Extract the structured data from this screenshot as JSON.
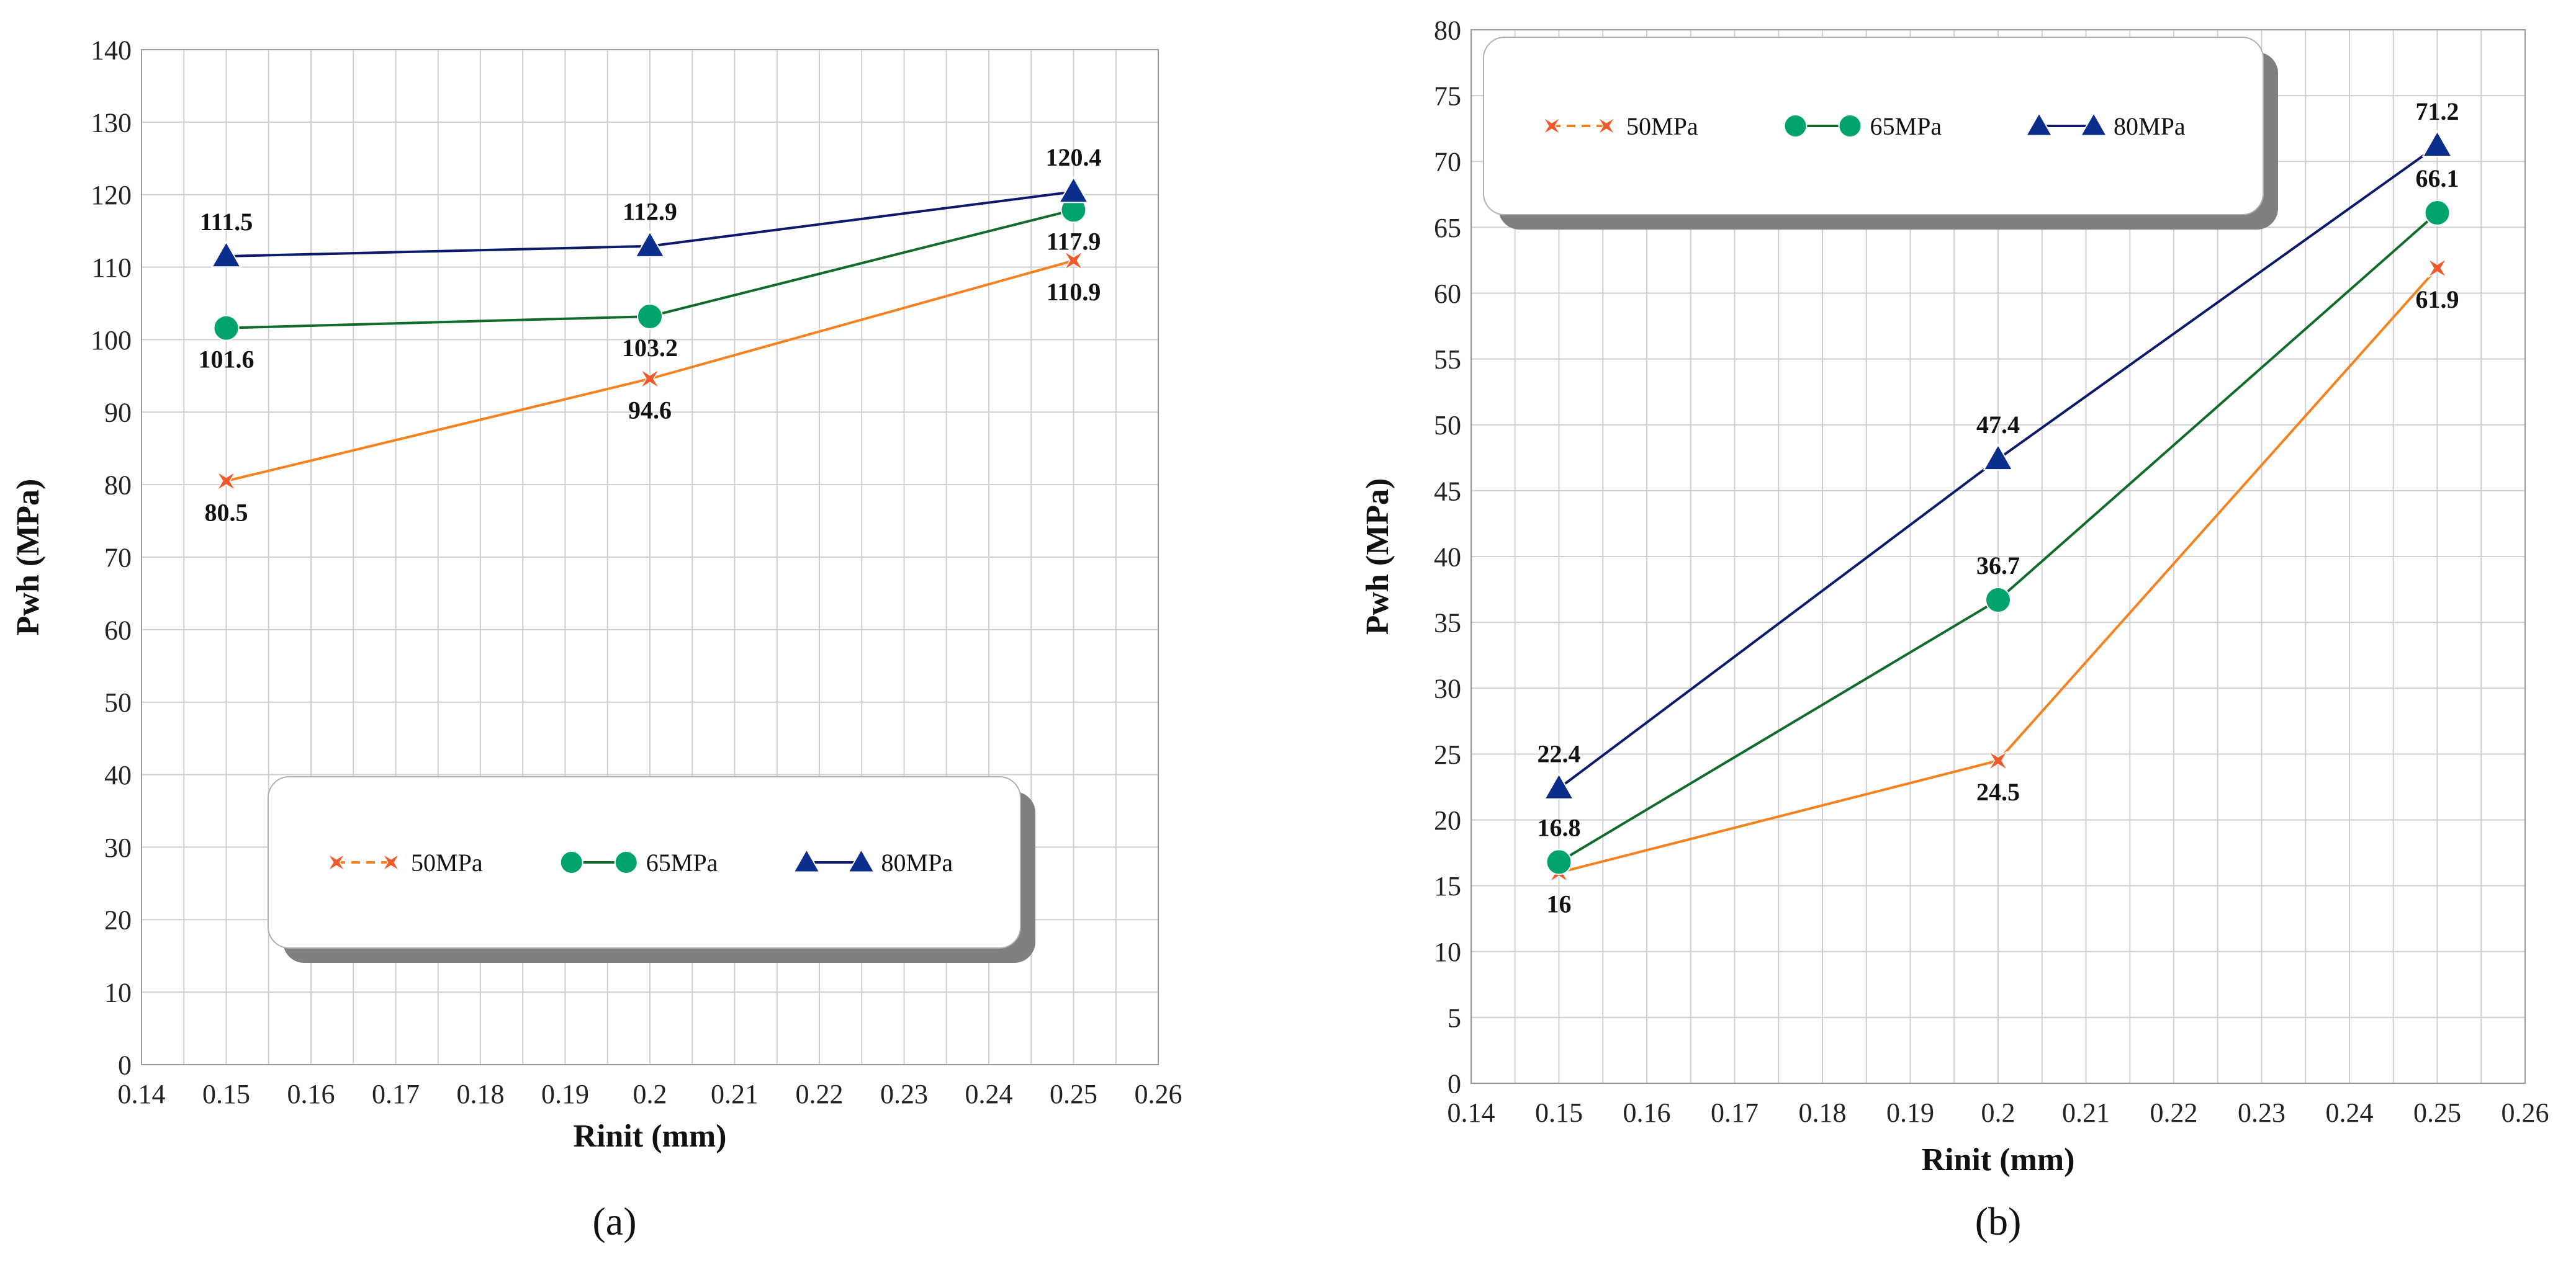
{
  "chart_data": [
    {
      "type": "line",
      "panel_label": "(a)",
      "title": "",
      "xlabel": "Rinit (mm)",
      "ylabel": "Pwh (MPa)",
      "xlim": [
        0.14,
        0.26
      ],
      "ylim": [
        0,
        140
      ],
      "x_tick_step": 0.005,
      "x_label_step": 0.01,
      "y_tick_step": 10,
      "x_tick_labels": [
        "0.14",
        "0.15",
        "0.16",
        "0.17",
        "0.18",
        "0.19",
        "0.2",
        "0.21",
        "0.22",
        "0.23",
        "0.24",
        "0.25",
        "0.26"
      ],
      "y_tick_labels": [
        "0",
        "10",
        "20",
        "30",
        "40",
        "50",
        "60",
        "70",
        "80",
        "90",
        "100",
        "110",
        "120",
        "130",
        "140"
      ],
      "grid": true,
      "legend_position": "bottom-center",
      "series": [
        {
          "name": "50MPa",
          "color": "#f58220",
          "marker_color": "#f2592a",
          "marker": "star",
          "x": [
            0.15,
            0.2,
            0.25
          ],
          "values": [
            80.5,
            94.6,
            110.9
          ],
          "labels": [
            "80.5",
            "94.6",
            "110.9"
          ],
          "label_pos": [
            "below",
            "below",
            "below"
          ]
        },
        {
          "name": "65MPa",
          "color": "#116b2c",
          "marker_color": "#00a36a",
          "marker": "circle",
          "x": [
            0.15,
            0.2,
            0.25
          ],
          "values": [
            101.6,
            103.2,
            117.9
          ],
          "labels": [
            "101.6",
            "103.2",
            "117.9"
          ],
          "label_pos": [
            "below",
            "below",
            "below"
          ]
        },
        {
          "name": "80MPa",
          "color": "#0d1a6b",
          "marker_color": "#0b2e8c",
          "marker": "triangle",
          "x": [
            0.15,
            0.2,
            0.25
          ],
          "values": [
            111.5,
            112.9,
            120.4
          ],
          "labels": [
            "111.5",
            "112.9",
            "120.4"
          ],
          "label_pos": [
            "above",
            "above",
            "above"
          ]
        }
      ]
    },
    {
      "type": "line",
      "panel_label": "(b)",
      "title": "",
      "xlabel": "Rinit (mm)",
      "ylabel": "Pwh (MPa)",
      "xlim": [
        0.14,
        0.26
      ],
      "ylim": [
        0,
        80
      ],
      "x_tick_step": 0.005,
      "x_label_step": 0.01,
      "y_tick_step": 5,
      "x_tick_labels": [
        "0.14",
        "0.15",
        "0.16",
        "0.17",
        "0.18",
        "0.19",
        "0.2",
        "0.21",
        "0.22",
        "0.23",
        "0.24",
        "0.25",
        "0.26"
      ],
      "y_tick_labels": [
        "0",
        "5",
        "10",
        "15",
        "20",
        "25",
        "30",
        "35",
        "40",
        "45",
        "50",
        "55",
        "60",
        "65",
        "70",
        "75",
        "80"
      ],
      "grid": true,
      "legend_position": "top-left",
      "series": [
        {
          "name": "50MPa",
          "color": "#f58220",
          "marker_color": "#f2592a",
          "marker": "star",
          "x": [
            0.15,
            0.2,
            0.25
          ],
          "values": [
            16,
            24.5,
            61.9
          ],
          "labels": [
            "16",
            "24.5",
            "61.9"
          ],
          "label_pos": [
            "below",
            "below",
            "below"
          ]
        },
        {
          "name": "65MPa",
          "color": "#116b2c",
          "marker_color": "#00a36a",
          "marker": "circle",
          "x": [
            0.15,
            0.2,
            0.25
          ],
          "values": [
            16.8,
            36.7,
            66.1
          ],
          "labels": [
            "16.8",
            "36.7",
            "66.1"
          ],
          "label_pos": [
            "above",
            "above",
            "above"
          ]
        },
        {
          "name": "80MPa",
          "color": "#0d1a6b",
          "marker_color": "#0b2e8c",
          "marker": "triangle",
          "x": [
            0.15,
            0.2,
            0.25
          ],
          "values": [
            22.4,
            47.4,
            71.2
          ],
          "labels": [
            "22.4",
            "47.4",
            "71.2"
          ],
          "label_pos": [
            "above",
            "above",
            "above"
          ]
        }
      ]
    }
  ]
}
